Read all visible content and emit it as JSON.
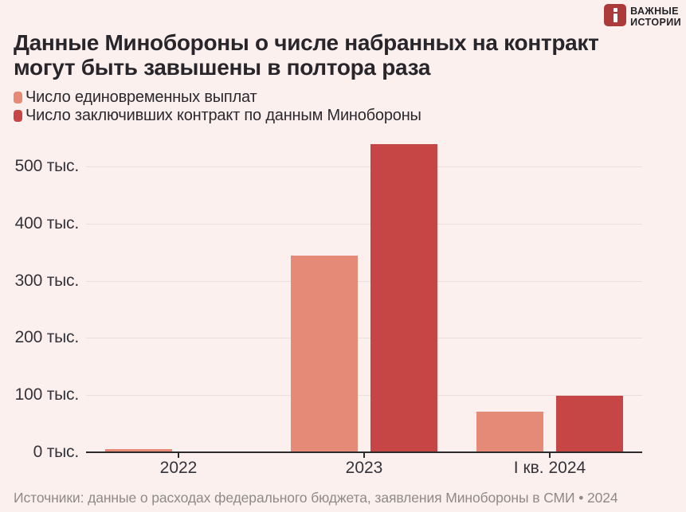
{
  "logo": {
    "line1": "ВАЖНЫЕ",
    "line2": "ИСТОРИИ"
  },
  "title": {
    "line1": "Данные Минобороны о числе набранных на контракт",
    "line2": "могут быть завышены в полтора раза"
  },
  "source": "Источники: данные о расходах федерального бюджета, заявления Минобороны в СМИ • 2024",
  "colors": {
    "background": "#FBF0EE",
    "payments_bar": "#E48A76",
    "mod_bar": "#C64646",
    "title_text": "#29262B",
    "axis_text": "#35333A",
    "grid_line": "#EBDFDD",
    "axis_line": "#2B2B2B",
    "muted_text": "#8F8A89",
    "logo_red": "#AC3A3A"
  },
  "chart_data": {
    "type": "bar",
    "categories": [
      "2022",
      "2023",
      "I кв. 2024"
    ],
    "series": [
      {
        "name": "Число единовременных выплат",
        "color": "#E48A76",
        "values": [
          7,
          345,
          72
        ]
      },
      {
        "name": "Число заключивших контракт по данным Минобороны",
        "color": "#C64646",
        "values": [
          null,
          540,
          100
        ]
      }
    ],
    "y_ticks": [
      0,
      100,
      200,
      300,
      400,
      500
    ],
    "y_tick_suffix": " тыс.",
    "ylim": [
      0,
      555
    ],
    "grid": true,
    "legend_position": "top-left"
  }
}
